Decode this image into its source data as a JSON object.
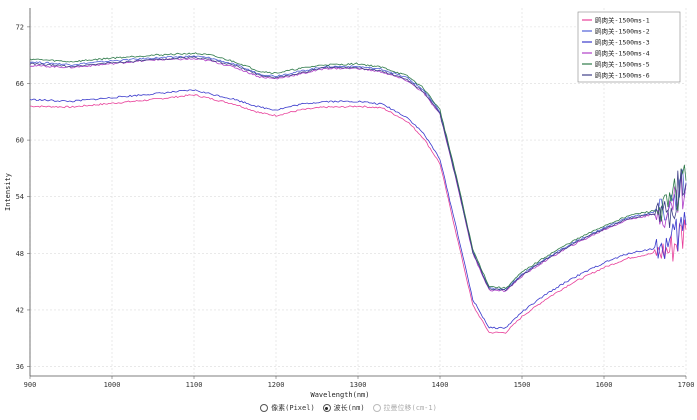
{
  "chart_data": {
    "type": "line",
    "xlabel": "Wavelength(nm)",
    "ylabel": "Intensity",
    "xlim": [
      900,
      1700
    ],
    "ylim": [
      35,
      74
    ],
    "x_ticks": [
      900,
      1000,
      1100,
      1200,
      1300,
      1400,
      1500,
      1600,
      1700
    ],
    "y_ticks": [
      36,
      42,
      48,
      54,
      60,
      66,
      72
    ],
    "grid": true,
    "legend_position": "top-right",
    "x": [
      900,
      950,
      1000,
      1050,
      1100,
      1120,
      1150,
      1180,
      1200,
      1230,
      1260,
      1280,
      1300,
      1330,
      1360,
      1380,
      1400,
      1420,
      1440,
      1460,
      1480,
      1500,
      1530,
      1560,
      1600,
      1630,
      1660,
      1680,
      1690,
      1700
    ],
    "series": [
      {
        "name": "鸥肉关-1500ms-1",
        "color": "#e8409a",
        "values": [
          63.6,
          63.5,
          63.9,
          64.3,
          64.8,
          64.4,
          63.8,
          62.9,
          62.6,
          63.2,
          63.5,
          63.5,
          63.6,
          63.4,
          62.0,
          60.2,
          57.5,
          50.0,
          42.5,
          39.6,
          39.6,
          41.3,
          43.2,
          44.8,
          46.5,
          47.5,
          48.0,
          48.3,
          49.5,
          50.5
        ]
      },
      {
        "name": "鸥肉关-1500ms-2",
        "color": "#5060d8",
        "values": [
          68.3,
          68.0,
          68.4,
          68.7,
          68.9,
          68.7,
          68.0,
          67.0,
          66.8,
          67.3,
          67.8,
          67.8,
          67.8,
          67.5,
          66.6,
          65.3,
          63.0,
          56.0,
          48.2,
          44.3,
          44.2,
          45.8,
          47.5,
          49.0,
          50.7,
          51.8,
          52.3,
          52.7,
          54.5,
          55.5
        ]
      },
      {
        "name": "鸥肉关-1500ms-3",
        "color": "#3a3acc",
        "values": [
          64.3,
          64.1,
          64.5,
          64.9,
          65.3,
          64.9,
          64.3,
          63.5,
          63.2,
          63.8,
          64.1,
          64.1,
          64.1,
          63.8,
          62.4,
          60.7,
          58.0,
          50.7,
          43.1,
          40.1,
          40.1,
          41.8,
          43.7,
          45.3,
          47.0,
          48.0,
          48.5,
          48.8,
          50.0,
          51.0
        ]
      },
      {
        "name": "鸥肉关-1500ms-4",
        "color": "#b040c8",
        "values": [
          67.9,
          67.7,
          68.1,
          68.5,
          68.6,
          68.4,
          67.7,
          66.7,
          66.5,
          67.0,
          67.6,
          67.6,
          67.6,
          67.2,
          66.3,
          65.0,
          62.7,
          55.7,
          48.0,
          44.1,
          44.0,
          45.6,
          47.3,
          48.8,
          50.5,
          51.6,
          52.1,
          52.4,
          54.3,
          55.3
        ]
      },
      {
        "name": "鸥肉关-1500ms-5",
        "color": "#2e7a4a",
        "values": [
          68.6,
          68.3,
          68.7,
          69.0,
          69.2,
          69.0,
          68.3,
          67.3,
          67.1,
          67.6,
          68.0,
          68.0,
          68.1,
          67.7,
          66.8,
          65.5,
          63.2,
          56.2,
          48.4,
          44.5,
          44.3,
          46.0,
          47.7,
          49.2,
          50.9,
          52.0,
          52.5,
          52.9,
          54.7,
          55.7
        ]
      },
      {
        "name": "鸥肉关-1500ms-6",
        "color": "#404088",
        "values": [
          68.1,
          67.8,
          68.2,
          68.5,
          68.8,
          68.5,
          67.9,
          66.9,
          66.6,
          67.1,
          67.7,
          67.7,
          67.7,
          67.3,
          66.4,
          65.1,
          62.8,
          55.8,
          48.1,
          44.2,
          44.1,
          45.7,
          47.4,
          48.9,
          50.6,
          51.7,
          52.2,
          52.5,
          54.4,
          55.4
        ]
      }
    ]
  },
  "x_unit_selector": {
    "options": [
      {
        "label": "像素(Pixel)",
        "checked": false,
        "disabled": false
      },
      {
        "label": "波长(nm)",
        "checked": true,
        "disabled": false
      },
      {
        "label": "拉曼位移(cm-1)",
        "checked": false,
        "disabled": true
      }
    ]
  }
}
